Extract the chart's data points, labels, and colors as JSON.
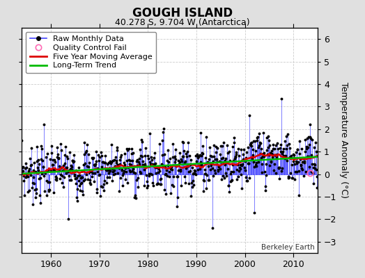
{
  "title": "GOUGH ISLAND",
  "subtitle": "40.278 S, 9.704 W (Antarctica)",
  "ylabel": "Temperature Anomaly (°C)",
  "credit": "Berkeley Earth",
  "ylim": [
    -3.5,
    6.5
  ],
  "xlim": [
    1954,
    2015
  ],
  "yticks": [
    -3,
    -2,
    -1,
    0,
    1,
    2,
    3,
    4,
    5,
    6
  ],
  "xticks": [
    1960,
    1970,
    1980,
    1990,
    2000,
    2010
  ],
  "start_year": 1954,
  "end_year": 2015,
  "background_color": "#e0e0e0",
  "plot_bg_color": "#ffffff",
  "raw_line_color": "#4444ff",
  "raw_dot_color": "#000000",
  "qc_fail_color": "#ff69b4",
  "moving_avg_color": "#dd0000",
  "trend_color": "#00bb00",
  "grid_color": "#cccccc",
  "title_fontsize": 12,
  "subtitle_fontsize": 9,
  "axis_fontsize": 9,
  "legend_fontsize": 8
}
